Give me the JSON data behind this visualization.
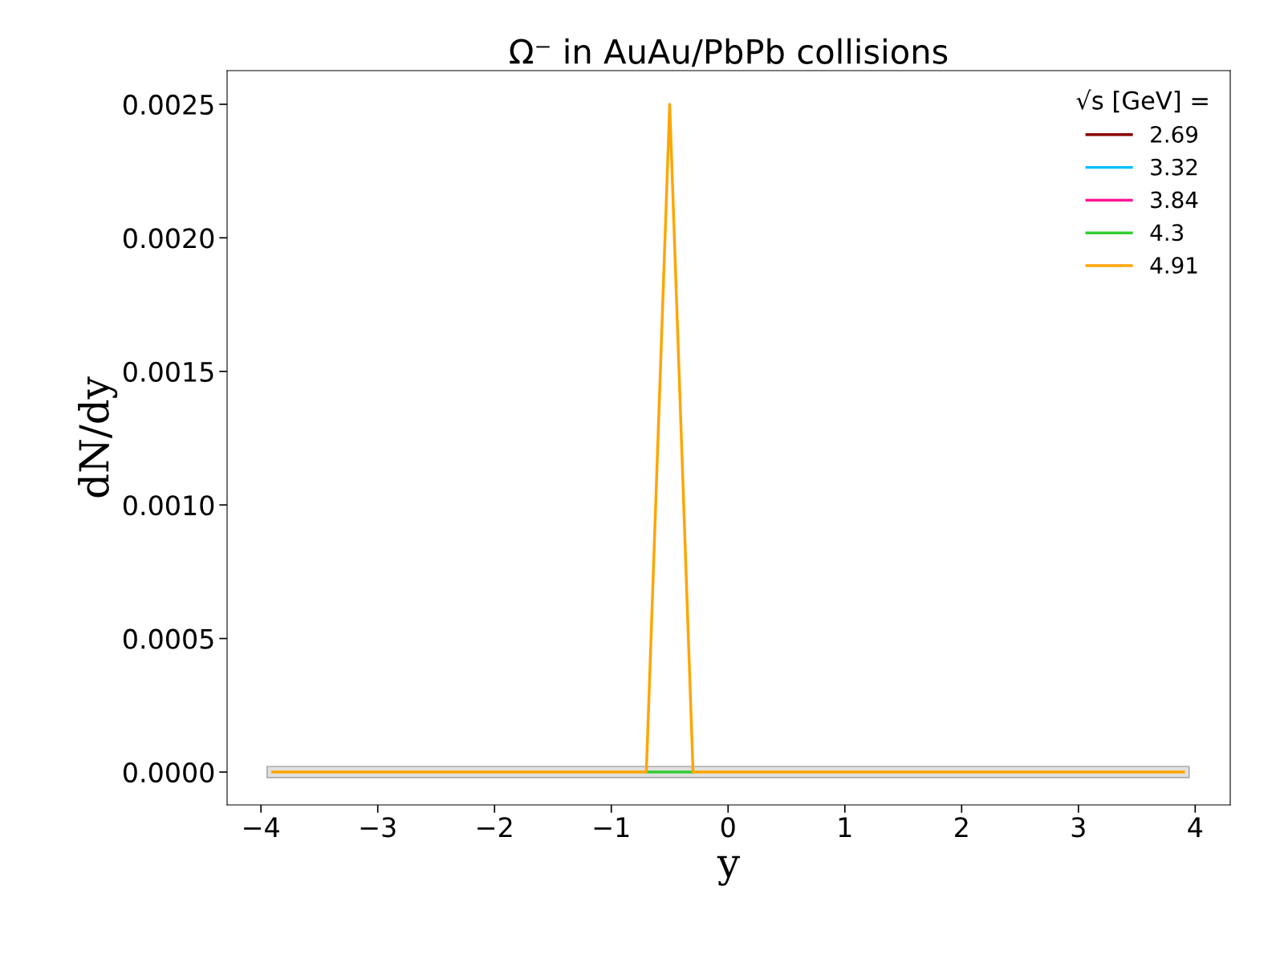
{
  "chart_data": {
    "type": "line",
    "title": "Ω⁻ in AuAu/PbPb collisions",
    "xlabel": "y",
    "ylabel": "dN/dy",
    "legend_title": "√s [GeV] =",
    "xlim": [
      -4.29,
      4.3
    ],
    "xticks": [
      {
        "value": -4,
        "label": "−4"
      },
      {
        "value": -3,
        "label": "−3"
      },
      {
        "value": -2,
        "label": "−2"
      },
      {
        "value": -1,
        "label": "−1"
      },
      0,
      1,
      2,
      3,
      4
    ],
    "ylim": [
      -0.000123,
      0.002626
    ],
    "yticks": [
      {
        "value": 0,
        "label": "0.0000"
      },
      {
        "value": 0.0005,
        "label": "0.0005"
      },
      {
        "value": 0.001,
        "label": "0.0010"
      },
      {
        "value": 0.0015,
        "label": "0.0015"
      },
      {
        "value": 0.002,
        "label": "0.0020"
      },
      {
        "value": 0.0025,
        "label": "0.0025"
      }
    ],
    "legend": "top right",
    "marker": "none",
    "line_style": "solid",
    "series": [
      {
        "color": "#e0e0e0",
        "x": [
          -3.9,
          3.9
        ],
        "values": [
          0,
          0
        ]
      },
      {
        "name": "2.69",
        "color": "#8b0000"
      },
      {
        "name": "3.32",
        "color": "#00bfff"
      },
      {
        "name": "3.84",
        "color": "#ff1493"
      },
      {
        "name": "4.3",
        "color": "#32cd32",
        "x": [
          -0.7,
          -0.3
        ],
        "values": [
          0,
          0
        ]
      },
      {
        "name": "4.91",
        "color": "#ffa500",
        "x": [
          -3.9,
          -0.7,
          -0.5,
          -0.3,
          3.9
        ],
        "values": [
          0,
          0,
          0.0025,
          0,
          0
        ]
      }
    ]
  }
}
